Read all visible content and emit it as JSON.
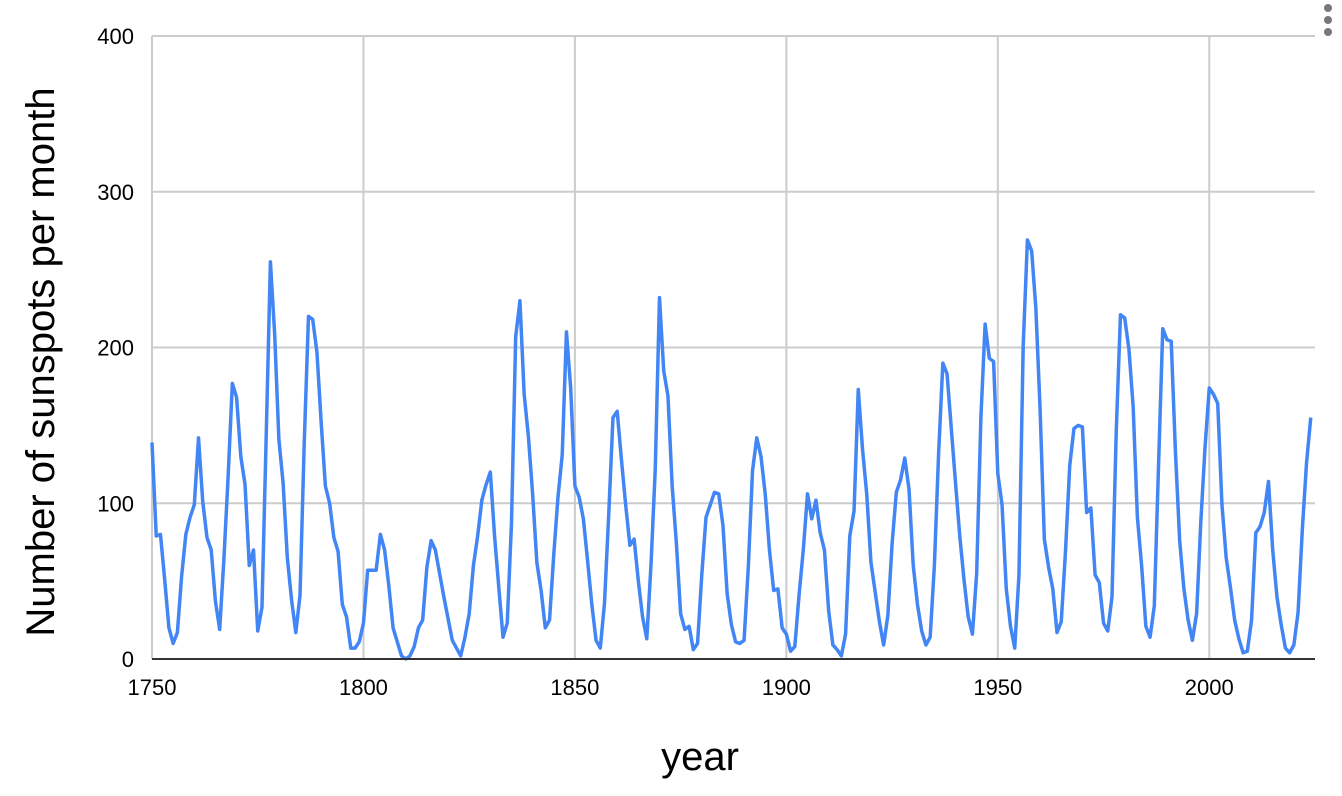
{
  "chart_data": {
    "type": "line",
    "x_label": "year",
    "y_label": "Number of sunspots per month",
    "xlim": [
      1750,
      2025
    ],
    "ylim": [
      0,
      400
    ],
    "xticks": [
      1750,
      1800,
      1850,
      1900,
      1950,
      2000
    ],
    "yticks": [
      0,
      100,
      200,
      300,
      400
    ],
    "grid": true,
    "x": [
      1750,
      1751,
      1752,
      1753,
      1754,
      1755,
      1756,
      1757,
      1758,
      1759,
      1760,
      1761,
      1762,
      1763,
      1764,
      1765,
      1766,
      1767,
      1768,
      1769,
      1770,
      1771,
      1772,
      1773,
      1774,
      1775,
      1776,
      1777,
      1778,
      1779,
      1780,
      1781,
      1782,
      1783,
      1784,
      1785,
      1786,
      1787,
      1788,
      1789,
      1790,
      1791,
      1792,
      1793,
      1794,
      1795,
      1796,
      1797,
      1798,
      1799,
      1800,
      1801,
      1802,
      1803,
      1804,
      1805,
      1806,
      1807,
      1808,
      1809,
      1810,
      1811,
      1812,
      1813,
      1814,
      1815,
      1816,
      1817,
      1818,
      1819,
      1820,
      1821,
      1822,
      1823,
      1824,
      1825,
      1826,
      1827,
      1828,
      1829,
      1830,
      1831,
      1832,
      1833,
      1834,
      1835,
      1836,
      1837,
      1838,
      1839,
      1840,
      1841,
      1842,
      1843,
      1844,
      1845,
      1846,
      1847,
      1848,
      1849,
      1850,
      1851,
      1852,
      1853,
      1854,
      1855,
      1856,
      1857,
      1858,
      1859,
      1860,
      1861,
      1862,
      1863,
      1864,
      1865,
      1866,
      1867,
      1868,
      1869,
      1870,
      1871,
      1872,
      1873,
      1874,
      1875,
      1876,
      1877,
      1878,
      1879,
      1880,
      1881,
      1882,
      1883,
      1884,
      1885,
      1886,
      1887,
      1888,
      1889,
      1890,
      1891,
      1892,
      1893,
      1894,
      1895,
      1896,
      1897,
      1898,
      1899,
      1900,
      1901,
      1902,
      1903,
      1904,
      1905,
      1906,
      1907,
      1908,
      1909,
      1910,
      1911,
      1912,
      1913,
      1914,
      1915,
      1916,
      1917,
      1918,
      1919,
      1920,
      1921,
      1922,
      1923,
      1924,
      1925,
      1926,
      1927,
      1928,
      1929,
      1930,
      1931,
      1932,
      1933,
      1934,
      1935,
      1936,
      1937,
      1938,
      1939,
      1940,
      1941,
      1942,
      1943,
      1944,
      1945,
      1946,
      1947,
      1948,
      1949,
      1950,
      1951,
      1952,
      1953,
      1954,
      1955,
      1956,
      1957,
      1958,
      1959,
      1960,
      1961,
      1962,
      1963,
      1964,
      1965,
      1966,
      1967,
      1968,
      1969,
      1970,
      1971,
      1972,
      1973,
      1974,
      1975,
      1976,
      1977,
      1978,
      1979,
      1980,
      1981,
      1982,
      1983,
      1984,
      1985,
      1986,
      1987,
      1988,
      1989,
      1990,
      1991,
      1992,
      1993,
      1994,
      1995,
      1996,
      1997,
      1998,
      1999,
      2000,
      2001,
      2002,
      2003,
      2004,
      2005,
      2006,
      2007,
      2008,
      2009,
      2010,
      2011,
      2012,
      2013,
      2014,
      2015,
      2016,
      2017,
      2018,
      2019,
      2020,
      2021,
      2022,
      2023,
      2024
    ],
    "series": [
      {
        "name": "Number of sunspots per month",
        "color": "#4285f4",
        "values": [
          139,
          79,
          80,
          51,
          20,
          10,
          17,
          53,
          80,
          91,
          99,
          142,
          101,
          78,
          70,
          37,
          19,
          64,
          117,
          177,
          168,
          130,
          112,
          60,
          70,
          18,
          33,
          143,
          255,
          209,
          141,
          113,
          65,
          38,
          17,
          41,
          139,
          220,
          218,
          197,
          152,
          111,
          100,
          78,
          69,
          35,
          27,
          7,
          7,
          11,
          23,
          57,
          57,
          57,
          80,
          70,
          47,
          20,
          11,
          2,
          0,
          2,
          8,
          20,
          25,
          59,
          76,
          70,
          55,
          40,
          26,
          12,
          7,
          2,
          14,
          29,
          60,
          79,
          102,
          112,
          120,
          79,
          46,
          14,
          23,
          87,
          207,
          230,
          170,
          143,
          106,
          62,
          44,
          20,
          25,
          67,
          104,
          131,
          210,
          174,
          111,
          104,
          90,
          63,
          35,
          12,
          7,
          36,
          93,
          155,
          159,
          128,
          99,
          73,
          77,
          50,
          27,
          13,
          61,
          122,
          232,
          185,
          169,
          111,
          74,
          29,
          19,
          21,
          6,
          10,
          54,
          91,
          99,
          107,
          106,
          86,
          42,
          22,
          11,
          10,
          12,
          59,
          121,
          142,
          130,
          106,
          70,
          44,
          45,
          20,
          16,
          5,
          8,
          41,
          70,
          106,
          90,
          102,
          81,
          70,
          31,
          9,
          6,
          2,
          16,
          79,
          95,
          173,
          135,
          106,
          62,
          43,
          24,
          9,
          28,
          74,
          107,
          115,
          129,
          109,
          60,
          35,
          18,
          9,
          14,
          60,
          132,
          190,
          183,
          148,
          113,
          79,
          51,
          27,
          16,
          55,
          155,
          215,
          193,
          191,
          119,
          99,
          45,
          21,
          7,
          54,
          201,
          269,
          262,
          225,
          160,
          77,
          59,
          45,
          17,
          24,
          69,
          124,
          148,
          150,
          149,
          94,
          97,
          54,
          49,
          23,
          18,
          40,
          146,
          221,
          219,
          199,
          162,
          91,
          60,
          21,
          14,
          34,
          124,
          212,
          205,
          204,
          133,
          76,
          45,
          25,
          12,
          29,
          88,
          136,
          174,
          170,
          164,
          99,
          65,
          46,
          25,
          13,
          4,
          5,
          25,
          81,
          85,
          94,
          114,
          70,
          40,
          22,
          7,
          4,
          9,
          30,
          83,
          126,
          155
        ]
      }
    ]
  }
}
